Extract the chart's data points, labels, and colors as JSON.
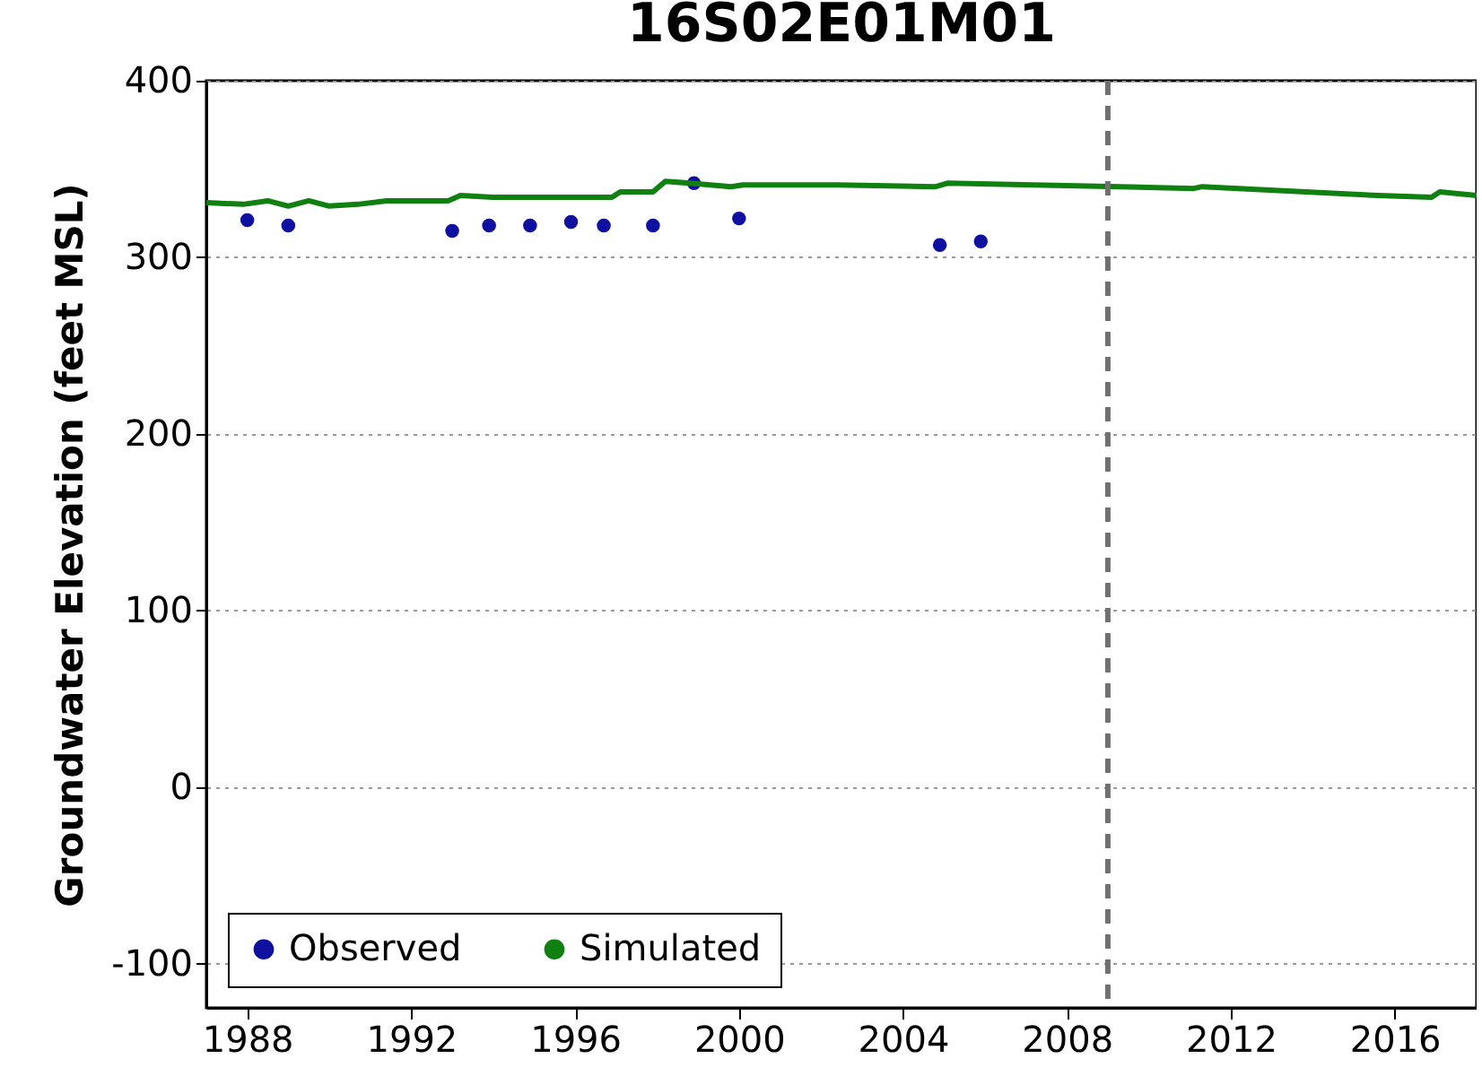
{
  "chart_data": {
    "type": "line",
    "title": "16S02E01M01",
    "ylabel": "Groundwater Elevation (feet MSL)",
    "xlim": [
      1987,
      2018
    ],
    "xticks": [
      1988,
      1992,
      1996,
      2000,
      2004,
      2008,
      2012,
      2016
    ],
    "ylim": [
      -125,
      400
    ],
    "yticks": [
      -100,
      0,
      100,
      200,
      300,
      400
    ],
    "grid": "y",
    "legend": "bottom left",
    "series": [
      {
        "name": "Observed",
        "type": "scatter",
        "marker": "circle",
        "color": "#1010a0",
        "x": [
          1988.0,
          1989.0,
          1993.0,
          1993.9,
          1994.9,
          1995.9,
          1996.7,
          1997.9,
          1998.9,
          2000.0,
          2004.9,
          2005.9
        ],
        "values": [
          321,
          318,
          315,
          318,
          318,
          320,
          318,
          318,
          342,
          322,
          307,
          309
        ]
      },
      {
        "name": "Simulated",
        "type": "line",
        "marker": "none",
        "color": "#108010",
        "x": [
          1987.0,
          1987.9,
          1988.5,
          1989.0,
          1989.5,
          1990.0,
          1990.7,
          1991.4,
          1992.4,
          1992.9,
          1993.2,
          1994.0,
          1995.5,
          1996.9,
          1997.1,
          1997.9,
          1998.2,
          1998.8,
          1999.8,
          2000.1,
          2002.4,
          2004.8,
          2005.1,
          2011.1,
          2011.3,
          2015.6,
          2016.9,
          2017.1,
          2018.0
        ],
        "values": [
          331,
          330,
          332,
          329,
          332,
          329,
          330,
          332,
          332,
          332,
          335,
          334,
          334,
          334,
          337,
          337,
          343,
          342,
          340,
          341,
          341,
          340,
          342,
          339,
          340,
          335,
          334,
          337,
          335
        ]
      }
    ],
    "ref_lines": [
      {
        "axis": "x",
        "value": 2009,
        "color": "#707070",
        "line_style": "dashed"
      }
    ]
  }
}
